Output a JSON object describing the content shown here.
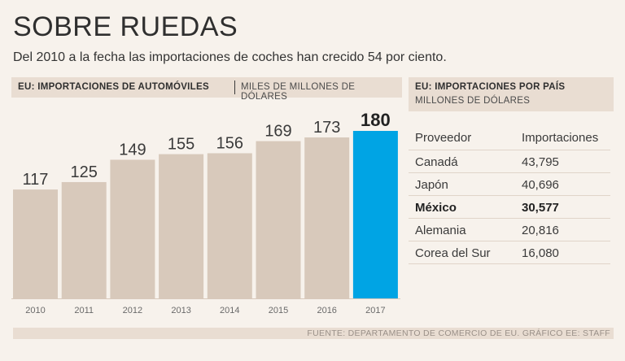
{
  "header": {
    "title": "SOBRE RUEDAS",
    "subtitle": "Del 2010 a la fecha las importaciones de coches han crecido 54 por ciento."
  },
  "left_panel": {
    "title": "EU: IMPORTACIONES DE AUTOMÓVILES",
    "unit": "MILES DE MILLONES DE DÓLARES"
  },
  "right_panel": {
    "title": "EU: IMPORTACIONES POR PAÍS",
    "unit": "MILLONES DE DÓLARES",
    "columns": [
      "Proveedor",
      "Importaciones"
    ],
    "rows": [
      {
        "country": "Canadá",
        "value": "43,795",
        "highlight": false
      },
      {
        "country": "Japón",
        "value": "40,696",
        "highlight": false
      },
      {
        "country": "México",
        "value": "30,577",
        "highlight": true
      },
      {
        "country": "Alemania",
        "value": "20,816",
        "highlight": false
      },
      {
        "country": "Corea del Sur",
        "value": "16,080",
        "highlight": false
      }
    ]
  },
  "footer": {
    "source": "FUENTE: DEPARTAMENTO DE COMERCIO DE EU.  GRÁFICO EE: STAFF"
  },
  "colors": {
    "bar": "#d8c9bb",
    "highlight_bar": "#00a4e4",
    "panel": "#e9ddd2",
    "background": "#f7f2ec"
  },
  "chart_data": {
    "type": "bar",
    "title": "EU: IMPORTACIONES DE AUTOMÓVILES",
    "ylabel": "MILES DE MILLONES DE DÓLARES",
    "xlabel": "",
    "categories": [
      "2010",
      "2011",
      "2012",
      "2013",
      "2014",
      "2015",
      "2016",
      "2017"
    ],
    "values": [
      117,
      125,
      149,
      155,
      156,
      169,
      173,
      180
    ],
    "highlight": "2017",
    "ylim": [
      0,
      180
    ]
  }
}
